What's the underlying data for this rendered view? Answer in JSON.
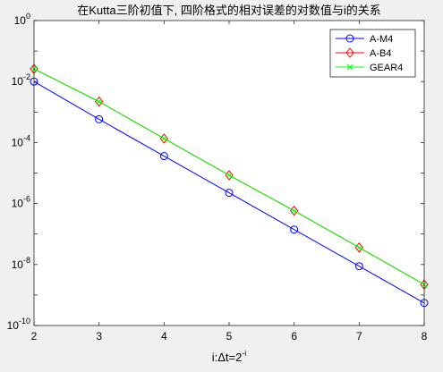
{
  "chart_data": {
    "type": "line",
    "title": "在Kutta三阶初值下, 四阶格式的相对误差的对数值与i的关系",
    "xlabel_base": "i:Δt=2",
    "xlabel_exp": "-i",
    "ylabel": "",
    "yscale": "log",
    "xlim": [
      2,
      8
    ],
    "ylim": [
      1e-10,
      1
    ],
    "x": [
      2,
      3,
      4,
      5,
      6,
      7,
      8
    ],
    "xticks": [
      "2",
      "3",
      "4",
      "5",
      "6",
      "7",
      "8"
    ],
    "yticks": [
      {
        "value": 1e-10,
        "base": "10",
        "exp": "-10"
      },
      {
        "value": 1e-08,
        "base": "10",
        "exp": "-8"
      },
      {
        "value": 1e-06,
        "base": "10",
        "exp": "-6"
      },
      {
        "value": 0.0001,
        "base": "10",
        "exp": "-4"
      },
      {
        "value": 0.01,
        "base": "10",
        "exp": "-2"
      },
      {
        "value": 1,
        "base": "10",
        "exp": "0"
      }
    ],
    "grid": false,
    "legend_position": "top-right",
    "series": [
      {
        "name": "A-M4",
        "color": "#0000ff",
        "marker": "circle",
        "values": [
          0.01,
          0.00058,
          3.6e-05,
          2.25e-06,
          1.4e-07,
          8.8e-09,
          5.5e-10
        ]
      },
      {
        "name": "A-B4",
        "color": "#ff0000",
        "marker": "diamond",
        "values": [
          0.026,
          0.0022,
          0.000135,
          8.5e-06,
          5.8e-07,
          3.6e-08,
          2.2e-09
        ]
      },
      {
        "name": "GEAR4",
        "color": "#00ff00",
        "marker": "x",
        "values": [
          0.026,
          0.0022,
          0.000135,
          8.5e-06,
          5.8e-07,
          3.6e-08,
          2.2e-09
        ]
      }
    ]
  }
}
